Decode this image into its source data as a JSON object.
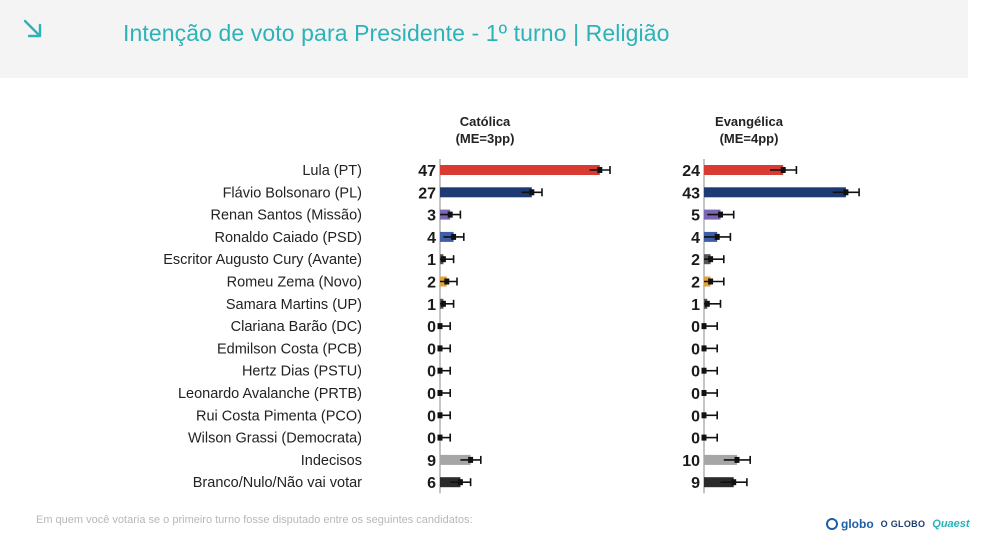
{
  "header": {
    "title": "Intenção de voto para Presidente - 1º turno | Religião",
    "icon": "arrow-down-right-icon"
  },
  "footnote": "Em quem você votaria se o primeiro turno fosse disputado entre os seguintes candidatos:",
  "logos": {
    "globo": "globo",
    "oglobo": "O GLOBO",
    "quaest": "Quaest"
  },
  "colors": {
    "title": "#2bb3b8",
    "Lula (PT)": "#d93a32",
    "Flávio Bolsonaro (PL)": "#1f3a73",
    "Renan Santos (Missão)": "#7b68b5",
    "Ronaldo Caiado (PSD)": "#3d5fa8",
    "Romeu Zema (Novo)": "#e0a33a",
    "Indecisos": "#a6a6a6",
    "Branco/Nulo/Não vai votar": "#2b2b2b",
    "default": "#555555"
  },
  "chart_data": {
    "type": "bar",
    "orientation": "horizontal",
    "categories": [
      "Lula (PT)",
      "Flávio Bolsonaro (PL)",
      "Renan Santos (Missão)",
      "Ronaldo Caiado (PSD)",
      "Escritor Augusto Cury (Avante)",
      "Romeu Zema (Novo)",
      "Samara Martins (UP)",
      "Clariana Barão (DC)",
      "Edmilson Costa (PCB)",
      "Hertz Dias (PSTU)",
      "Leonardo Avalanche (PRTB)",
      "Rui Costa Pimenta (PCO)",
      "Wilson Grassi (Democrata)",
      "Indecisos",
      "Branco/Nulo/Não vai votar"
    ],
    "series": [
      {
        "name": "Católica",
        "subtitle": "(ME=3pp)",
        "error_margin": 3,
        "values": [
          47,
          27,
          3,
          4,
          1,
          2,
          1,
          0,
          0,
          0,
          0,
          0,
          0,
          9,
          6
        ]
      },
      {
        "name": "Evangélica",
        "subtitle": "(ME=4pp)",
        "error_margin": 4,
        "values": [
          24,
          43,
          5,
          4,
          2,
          2,
          1,
          0,
          0,
          0,
          0,
          0,
          0,
          10,
          9
        ]
      }
    ],
    "xlim": [
      0,
      50
    ],
    "grid": false,
    "legend": "none"
  }
}
